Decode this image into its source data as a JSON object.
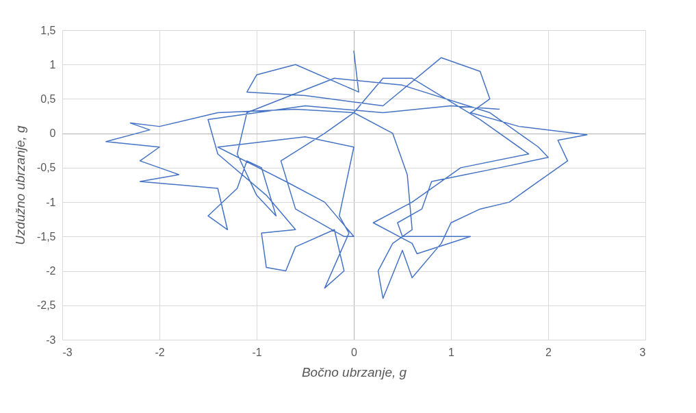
{
  "chart_data": {
    "type": "line",
    "xlabel": "Bočno ubrzanje, g",
    "ylabel": "Uzdužno ubrzanje, g",
    "xlim": [
      -3,
      3
    ],
    "xticks": [
      -3,
      -2,
      -1,
      0,
      1,
      2,
      3
    ],
    "ylim": [
      -3,
      1.5
    ],
    "yticks": [
      {
        "value": -3,
        "label": "-3"
      },
      {
        "value": -2.5,
        "label": "-2,5"
      },
      {
        "value": -2,
        "label": "-2"
      },
      {
        "value": -1.5,
        "label": "-1,5"
      },
      {
        "value": -1,
        "label": "-1"
      },
      {
        "value": -0.5,
        "label": "-0,5"
      },
      {
        "value": 0,
        "label": "0"
      },
      {
        "value": 0.5,
        "label": "0,5"
      },
      {
        "value": 1,
        "label": "1"
      },
      {
        "value": 1.5,
        "label": "1,5"
      }
    ],
    "grid": true,
    "marker": "none",
    "line_style": "solid",
    "series": [
      {
        "color": "#4472c4",
        "x": [
          0,
          0.05,
          -0.6,
          -1.0,
          -1.1,
          -0.5,
          0.3,
          0.9,
          1.3,
          1.4,
          1.2,
          1.7,
          2.4,
          2.1,
          2.2,
          1.9,
          1.6,
          1.3,
          1.0,
          0.9,
          0.6,
          0.5,
          0.3,
          0.25,
          0.4,
          0.6,
          0.55,
          0.4,
          0.0,
          -0.6,
          -1.4,
          -2.0,
          -2.3,
          -2.1,
          -2.55,
          -2.0,
          -2.2,
          -1.8,
          -2.2,
          -1.4,
          -1.3,
          -1.5,
          -1.2,
          -1.1,
          -0.95,
          -0.8,
          -1.0,
          -1.2,
          -1.1,
          -0.2,
          0.5,
          1.4,
          1.9,
          2.0,
          1.5,
          0.8,
          0.7,
          0.45,
          0.5,
          0.9,
          1.2,
          0.65,
          0.6,
          0.2,
          0.6,
          1.1,
          1.8,
          1.3,
          0.6,
          0.3,
          0.0,
          -0.3,
          -0.75,
          -0.6,
          -0.1,
          0.0,
          -0.3,
          -0.7,
          -1.4,
          -0.5,
          0.0,
          -0.15,
          -0.05,
          -0.3,
          -0.1,
          -0.2,
          -0.6,
          -0.7,
          -0.9,
          -0.95,
          -0.6,
          -0.9,
          -1.4,
          -1.5,
          -0.5,
          0.3,
          1.0,
          1.5
        ],
        "values": [
          1.2,
          0.6,
          1.0,
          0.85,
          0.6,
          0.55,
          0.4,
          1.1,
          0.9,
          0.5,
          0.3,
          0.1,
          -0.02,
          -0.1,
          -0.4,
          -0.7,
          -1.0,
          -1.1,
          -1.3,
          -1.6,
          -2.1,
          -1.7,
          -2.4,
          -2.0,
          -1.6,
          -1.4,
          -0.6,
          0.0,
          0.3,
          0.35,
          0.3,
          0.1,
          0.15,
          0.05,
          -0.12,
          -0.2,
          -0.4,
          -0.6,
          -0.7,
          -0.8,
          -1.4,
          -1.2,
          -0.8,
          -0.4,
          -0.5,
          -1.2,
          -0.9,
          -0.3,
          0.3,
          0.8,
          0.7,
          0.3,
          -0.2,
          -0.35,
          -0.5,
          -0.7,
          -1.1,
          -1.3,
          -1.5,
          -1.5,
          -1.5,
          -1.75,
          -1.6,
          -1.3,
          -1.0,
          -0.5,
          -0.3,
          0.2,
          0.8,
          0.8,
          0.3,
          0.0,
          -0.4,
          -1.1,
          -1.5,
          -1.5,
          -1.0,
          -0.7,
          -0.2,
          -0.05,
          -0.2,
          -1.2,
          -1.45,
          -2.25,
          -2.0,
          -1.4,
          -1.65,
          -2.0,
          -1.95,
          -1.45,
          -1.4,
          -0.9,
          -0.3,
          0.2,
          0.4,
          0.3,
          0.4,
          0.35
        ]
      }
    ]
  }
}
